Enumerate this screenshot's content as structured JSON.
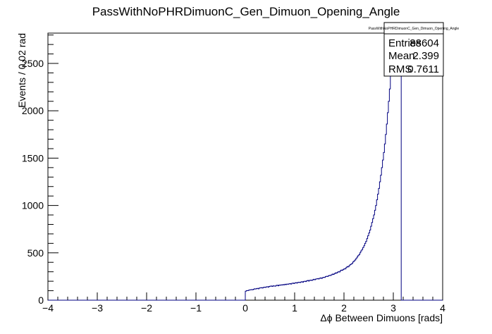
{
  "chart_data": {
    "type": "histogram",
    "title": "PassWithNoPHRDimuonC_Gen_Dimuon_Opening_Angle",
    "xlabel": "Δϕ Between Dimuons [rads]",
    "ylabel": "Events / 0.02 rad",
    "xlim": [
      -4,
      4
    ],
    "ylim": [
      0,
      2820
    ],
    "x_ticks": [
      -4,
      -3,
      -2,
      -1,
      0,
      1,
      2,
      3,
      4
    ],
    "x_tick_labels": [
      "−4",
      "−3",
      "−2",
      "−1",
      "0",
      "1",
      "2",
      "3",
      "4"
    ],
    "y_ticks": [
      0,
      500,
      1000,
      1500,
      2000,
      2500
    ],
    "y_tick_labels": [
      "0",
      "500",
      "1000",
      "1500",
      "2000",
      "2500"
    ],
    "bin_width": 0.02,
    "line_color": "#000080",
    "series": [
      {
        "x_start": 0.0,
        "values": [
          95,
          100,
          100,
          105,
          108,
          110,
          112,
          110,
          115,
          120,
          118,
          122,
          125,
          120,
          128,
          130,
          132,
          128,
          135,
          138,
          135,
          140,
          142,
          138,
          145,
          148,
          150,
          145,
          152,
          150,
          148,
          155,
          158,
          152,
          160,
          158,
          162,
          160,
          165,
          162,
          168,
          165,
          170,
          168,
          172,
          175,
          170,
          178,
          180,
          176,
          182,
          185,
          180,
          188,
          190,
          186,
          192,
          195,
          190,
          198,
          200,
          196,
          205,
          208,
          202,
          210,
          212,
          208,
          215,
          220,
          216,
          222,
          225,
          228,
          224,
          232,
          235,
          230,
          238,
          242,
          240,
          248,
          252,
          250,
          258,
          262,
          260,
          268,
          275,
          272,
          280,
          288,
          285,
          295,
          300,
          298,
          310,
          318,
          315,
          325,
          332,
          330,
          345,
          355,
          352,
          365,
          375,
          380,
          390,
          405,
          415,
          425,
          440,
          455,
          470,
          480,
          500,
          520,
          535,
          555,
          575,
          600,
          620,
          650,
          680,
          710,
          740,
          780,
          820,
          860,
          900,
          950,
          1000,
          1060,
          1120,
          1180,
          1250,
          1320,
          1400,
          1480,
          1560,
          1650,
          1750,
          1860,
          1980,
          2100,
          2230,
          2370,
          2520,
          2700,
          2820,
          2820,
          2820,
          2820,
          2820,
          2820,
          2820,
          2820,
          0
        ]
      }
    ],
    "stats": {
      "name": "PassWithNoPHRDimuonC_Gen_Dimuon_Opening_Angle",
      "entries_label": "Entries",
      "entries_value": "88604",
      "mean_label": "Mean",
      "mean_value": "2.399",
      "rms_label": "RMS",
      "rms_value": "0.7611"
    }
  }
}
